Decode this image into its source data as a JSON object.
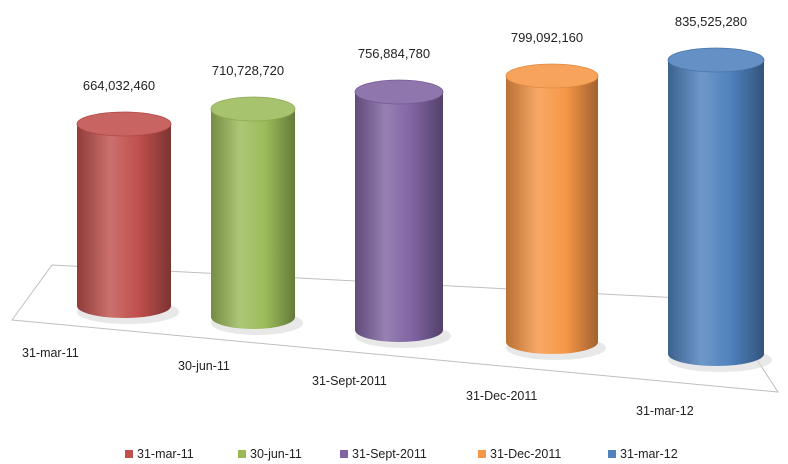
{
  "chart_data": {
    "type": "bar",
    "title": "",
    "xlabel": "",
    "ylabel": "",
    "categories": [
      "31-mar-11",
      "30-jun-11",
      "31-Sept-2011",
      "31-Dec-2011",
      "31-mar-12"
    ],
    "values": [
      664032460,
      710728720,
      756884780,
      799092160,
      835525280
    ],
    "value_labels": [
      "664,032,460",
      "710,728,720",
      "756,884,780",
      "799,092,160",
      "835,525,280"
    ],
    "colors": [
      "#c0504d",
      "#9bbb59",
      "#8064a2",
      "#f79646",
      "#4f81bd"
    ],
    "legend": {
      "placement": "bottom",
      "entries": [
        "31-mar-11",
        "30-jun-11",
        "31-Sept-2011",
        "31-Dec-2011",
        "31-mar-12"
      ]
    },
    "grid": false,
    "bar_shape": "cylinder-3d"
  }
}
